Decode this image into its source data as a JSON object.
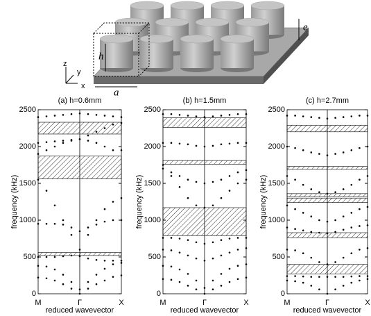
{
  "figure": {
    "axis_labels": [
      "z",
      "y",
      "x"
    ],
    "height_label": "h",
    "period_label": "a",
    "thickness_label": "e"
  },
  "chart_data": [
    {
      "type": "scatter",
      "title": "(a) h=0.6mm",
      "xlabel": "reduced wavevector",
      "ylabel": "frequency (kHz)",
      "xlim": [
        0,
        2
      ],
      "ylim": [
        0,
        2500
      ],
      "xticks": [
        {
          "value": 0,
          "label": "M"
        },
        {
          "value": 1,
          "label": "Γ"
        },
        {
          "value": 2,
          "label": "X"
        }
      ],
      "yticks": [
        0,
        500,
        1000,
        1500,
        2000,
        2500
      ],
      "x": [
        0,
        0.2,
        0.4,
        0.6,
        0.8,
        1,
        1.2,
        1.4,
        1.6,
        1.8,
        2
      ],
      "series": [
        {
          "color": "#000000",
          "values": [
            220,
            210,
            180,
            130,
            70,
            0,
            70,
            130,
            180,
            230,
            250
          ]
        },
        {
          "color": "#000000",
          "values": [
            380,
            370,
            330,
            260,
            160,
            60,
            160,
            260,
            340,
            400,
            420
          ]
        },
        {
          "color": "#000000",
          "values": [
            500,
            500,
            500,
            510,
            520,
            510,
            480,
            460,
            450,
            450,
            450
          ]
        },
        {
          "color": "#000000",
          "values": [
            1550,
            1400,
            1200,
            1000,
            800,
            600,
            800,
            1000,
            1150,
            1250,
            1300
          ]
        },
        {
          "color": "#000000",
          "values": [
            950,
            950,
            950,
            940,
            900,
            850,
            900,
            940,
            980,
            1000,
            1000
          ]
        },
        {
          "color": "#000000",
          "values": [
            1900,
            1950,
            2000,
            2050,
            2080,
            2100,
            2080,
            2050,
            2000,
            1950,
            1950
          ]
        },
        {
          "color": "#000000",
          "values": [
            2050,
            2060,
            2070,
            2080,
            2090,
            2100,
            2150,
            2200,
            2250,
            2300,
            2320
          ]
        },
        {
          "color": "#000000",
          "values": [
            2400,
            2410,
            2420,
            2430,
            2440,
            2450,
            2440,
            2430,
            2420,
            2410,
            2400
          ]
        }
      ],
      "bandgaps": [
        [
          520,
          560
        ],
        [
          1560,
          1870
        ],
        [
          2170,
          2330
        ]
      ]
    },
    {
      "type": "scatter",
      "title": "(b) h=1.5mm",
      "xlabel": "reduced wavevector",
      "ylabel": "frequency (kHz)",
      "xlim": [
        0,
        2
      ],
      "ylim": [
        0,
        2500
      ],
      "xticks": [
        {
          "value": 0,
          "label": "M"
        },
        {
          "value": 1,
          "label": "Γ"
        },
        {
          "value": 2,
          "label": "X"
        }
      ],
      "yticks": [
        0,
        500,
        1000,
        1500,
        2000,
        2500
      ],
      "x": [
        0,
        0.2,
        0.4,
        0.6,
        0.8,
        1,
        1.2,
        1.4,
        1.6,
        1.8,
        2
      ],
      "series": [
        {
          "color": "#000000",
          "values": [
            200,
            190,
            160,
            110,
            60,
            0,
            60,
            110,
            160,
            200,
            220
          ]
        },
        {
          "color": "#000000",
          "values": [
            380,
            370,
            330,
            270,
            180,
            80,
            180,
            270,
            340,
            380,
            400
          ]
        },
        {
          "color": "#000000",
          "values": [
            600,
            590,
            560,
            520,
            480,
            450,
            480,
            520,
            560,
            600,
            620
          ]
        },
        {
          "color": "#000000",
          "values": [
            760,
            760,
            750,
            730,
            700,
            680,
            700,
            730,
            750,
            760,
            760
          ]
        },
        {
          "color": "#000000",
          "values": [
            1750,
            1600,
            1450,
            1300,
            1200,
            1170,
            1200,
            1300,
            1400,
            1500,
            1550
          ]
        },
        {
          "color": "#000000",
          "values": [
            1700,
            1650,
            1600,
            1550,
            1520,
            1500,
            1520,
            1550,
            1600,
            1650,
            1680
          ]
        },
        {
          "color": "#000000",
          "values": [
            2050,
            2050,
            2040,
            2030,
            2010,
            2000,
            2010,
            2030,
            2040,
            2050,
            2050
          ]
        },
        {
          "color": "#000000",
          "values": [
            2440,
            2440,
            2430,
            2420,
            2410,
            2400,
            2410,
            2420,
            2430,
            2440,
            2440
          ]
        }
      ],
      "bandgaps": [
        [
          790,
          1170
        ],
        [
          1760,
          1810
        ],
        [
          2260,
          2390
        ]
      ]
    },
    {
      "type": "scatter",
      "title": "(c) h=2.7mm",
      "xlabel": "reduced wavevector",
      "ylabel": "frequency (kHz)",
      "xlim": [
        0,
        2
      ],
      "ylim": [
        0,
        2500
      ],
      "xticks": [
        {
          "value": 0,
          "label": "M"
        },
        {
          "value": 1,
          "label": "Γ"
        },
        {
          "value": 2,
          "label": "X"
        }
      ],
      "yticks": [
        0,
        500,
        1000,
        1500,
        2000,
        2500
      ],
      "x": [
        0,
        0.2,
        0.4,
        0.6,
        0.8,
        1,
        1.2,
        1.4,
        1.6,
        1.8,
        2
      ],
      "series": [
        {
          "color": "#000000",
          "values": [
            180,
            170,
            150,
            110,
            60,
            0,
            60,
            110,
            150,
            180,
            200
          ]
        },
        {
          "color": "#000000",
          "values": [
            240,
            240,
            235,
            230,
            230,
            230,
            230,
            230,
            235,
            240,
            240
          ]
        },
        {
          "color": "#000000",
          "values": [
            600,
            590,
            550,
            490,
            430,
            400,
            430,
            490,
            550,
            600,
            620
          ]
        },
        {
          "color": "#000000",
          "values": [
            900,
            880,
            860,
            840,
            830,
            820,
            840,
            870,
            900,
            920,
            930
          ]
        },
        {
          "color": "#000000",
          "values": [
            1200,
            1150,
            1100,
            1050,
            1000,
            980,
            1000,
            1050,
            1100,
            1150,
            1180
          ]
        },
        {
          "color": "#000000",
          "values": [
            1600,
            1550,
            1480,
            1420,
            1380,
            1360,
            1380,
            1420,
            1480,
            1550,
            1600
          ]
        },
        {
          "color": "#000000",
          "values": [
            2000,
            1980,
            1950,
            1920,
            1900,
            1880,
            1900,
            1920,
            1950,
            1980,
            2000
          ]
        },
        {
          "color": "#000000",
          "values": [
            2420,
            2420,
            2410,
            2400,
            2390,
            2380,
            2390,
            2400,
            2410,
            2420,
            2420
          ]
        }
      ],
      "bandgaps": [
        [
          270,
          400
        ],
        [
          760,
          830
        ],
        [
          1240,
          1300
        ],
        [
          1320,
          1360
        ],
        [
          1690,
          1730
        ],
        [
          2200,
          2290
        ]
      ]
    }
  ]
}
